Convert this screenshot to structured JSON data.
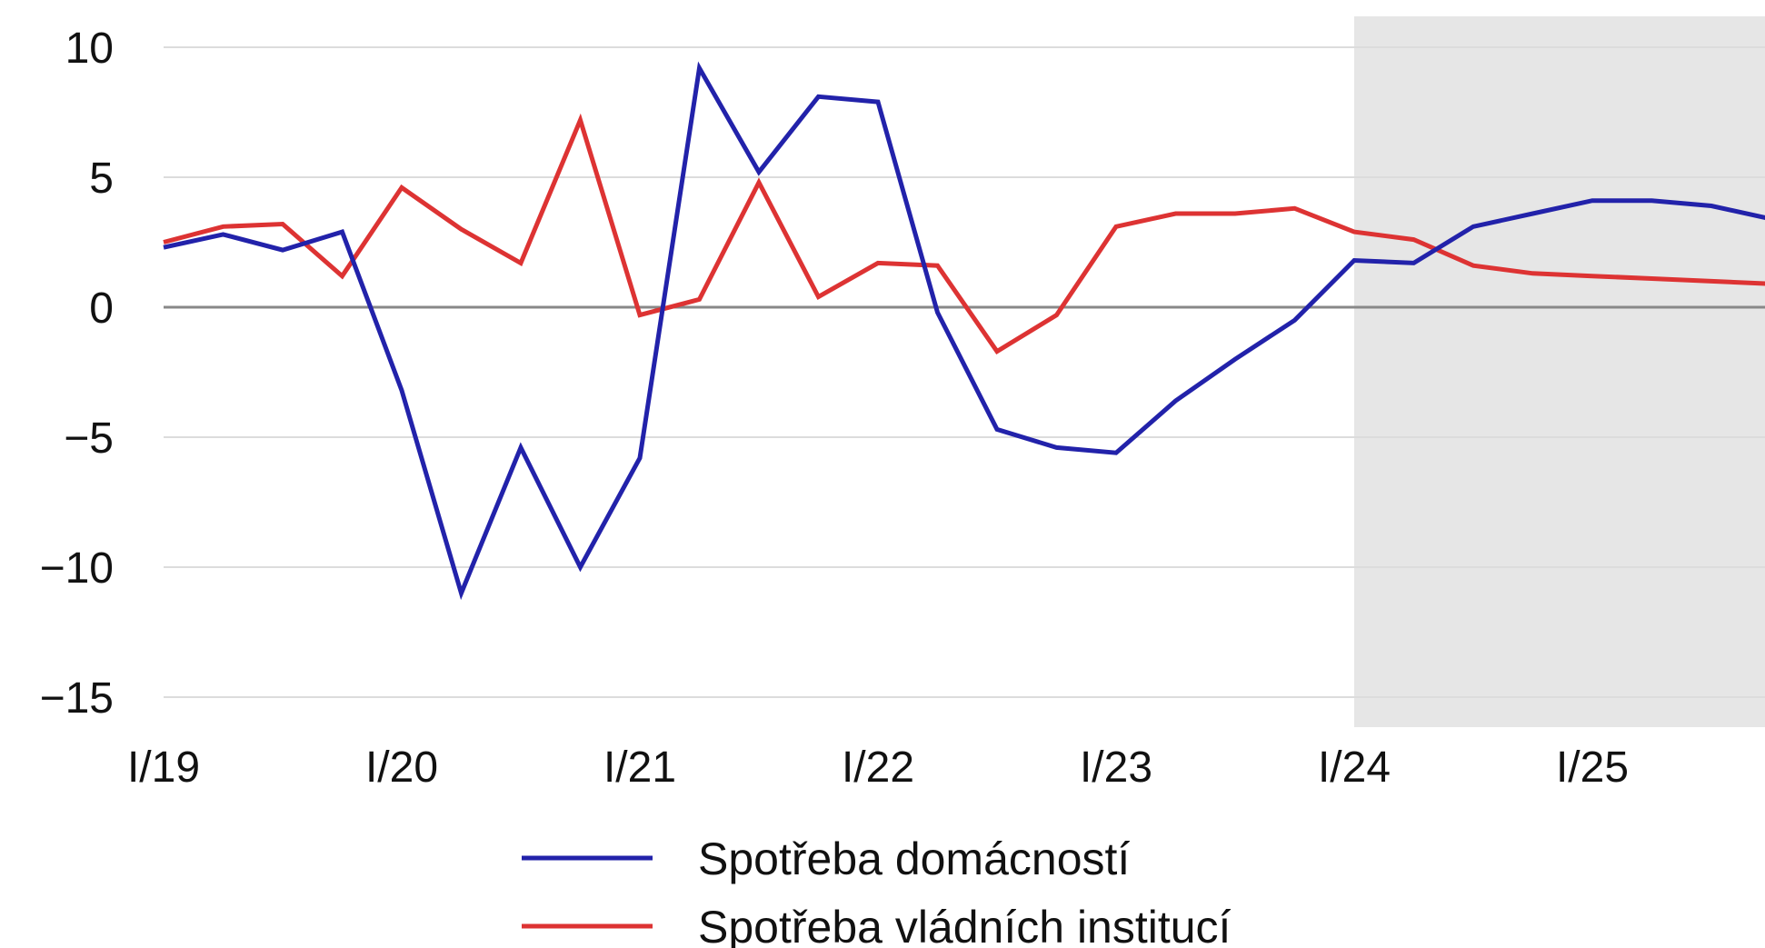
{
  "chart_data": {
    "type": "line",
    "x": [
      "I/19",
      "II/19",
      "III/19",
      "IV/19",
      "I/20",
      "II/20",
      "III/20",
      "IV/20",
      "I/21",
      "II/21",
      "III/21",
      "IV/21",
      "I/22",
      "II/22",
      "III/22",
      "IV/22",
      "I/23",
      "II/23",
      "III/23",
      "IV/23",
      "I/24",
      "II/24",
      "III/24",
      "IV/24",
      "I/25",
      "II/25",
      "III/25",
      "IV/25"
    ],
    "x_tick_labels": [
      "I/19",
      "I/20",
      "I/21",
      "I/22",
      "I/23",
      "I/24",
      "I/25"
    ],
    "series": [
      {
        "name": "Spotřeba domácností",
        "color": "#2222aa",
        "values": [
          2.3,
          2.8,
          2.2,
          2.9,
          -3.2,
          -11.0,
          -5.4,
          -10.0,
          -5.8,
          9.2,
          5.2,
          8.1,
          7.9,
          -0.2,
          -4.7,
          -5.4,
          -5.6,
          -3.6,
          -2.0,
          -0.5,
          1.8,
          1.7,
          3.1,
          3.6,
          4.1,
          4.1,
          3.9,
          3.4
        ]
      },
      {
        "name": "Spotřeba vládních institucí",
        "color": "#dd3333",
        "values": [
          2.5,
          3.1,
          3.2,
          1.2,
          4.6,
          3.0,
          1.7,
          7.2,
          -0.3,
          0.3,
          4.8,
          0.4,
          1.7,
          1.6,
          -1.7,
          -0.3,
          3.1,
          3.6,
          3.6,
          3.8,
          2.9,
          2.6,
          1.6,
          1.3,
          1.2,
          1.1,
          1.0,
          0.9
        ]
      }
    ],
    "y_ticks": [
      10,
      5,
      0,
      -5,
      -10,
      -15
    ],
    "ylim": [
      -16,
      11
    ],
    "forecast_shading_from": "I/24",
    "forecast_color": "#e6e6e6",
    "grid": true,
    "legend_position": "bottom-center",
    "title": "",
    "xlabel": "",
    "ylabel": ""
  }
}
